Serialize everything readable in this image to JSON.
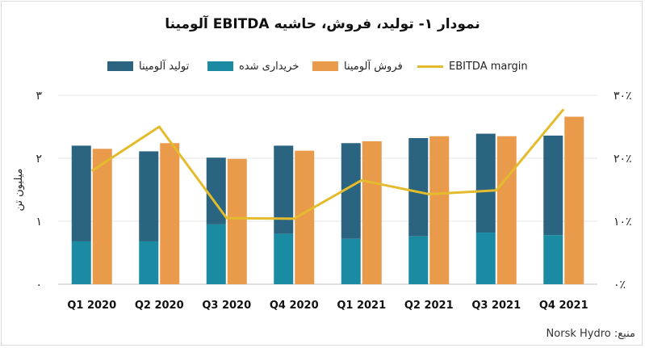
{
  "title": "نمودار ۱- تولید، فروش، حاشیه EBITDA آلومینا",
  "source": "منبع: Norsk Hydro",
  "colors": {
    "production": "#2b6480",
    "purchased": "#1b8ba3",
    "sales": "#ea9a4b",
    "ebitda": "#e4bb2d"
  },
  "legend": {
    "production": "تولید آلومینا",
    "purchased": "خریداری شده",
    "sales": "فروش آلومینا",
    "ebitda": "EBITDA margin"
  },
  "chart_data": {
    "type": "bar",
    "title": "نمودار ۱- تولید، فروش، حاشیه EBITDA آلومینا",
    "categories": [
      "Q1 2020",
      "Q2 2020",
      "Q3 2020",
      "Q4 2020",
      "Q1 2021",
      "Q2 2021",
      "Q3 2021",
      "Q4 2021"
    ],
    "series": [
      {
        "name": "تولید آلومینا",
        "kind": "stacked-bar-total",
        "values": [
          2.2,
          2.11,
          2.01,
          2.2,
          2.24,
          2.32,
          2.39,
          2.36
        ],
        "purchased_portion": [
          0.68,
          0.68,
          0.95,
          0.8,
          0.72,
          0.76,
          0.82,
          0.78
        ]
      },
      {
        "name": "خریداری شده",
        "kind": "stacked-bar-segment",
        "values": [
          0.68,
          0.68,
          0.95,
          0.8,
          0.72,
          0.76,
          0.82,
          0.78
        ]
      },
      {
        "name": "فروش آلومینا",
        "kind": "bar",
        "values": [
          2.15,
          2.24,
          1.99,
          2.12,
          2.27,
          2.35,
          2.35,
          2.66
        ]
      },
      {
        "name": "EBITDA margin",
        "kind": "line",
        "axis": "right",
        "values": [
          18,
          25,
          10.5,
          10.4,
          16.5,
          14.3,
          14.9,
          27.8
        ]
      }
    ],
    "ylabel": "میلیون تن",
    "ylim": [
      0,
      3
    ],
    "yticks": [
      "۰",
      "۱",
      "۲",
      "۳"
    ],
    "y2lim": [
      0,
      30
    ],
    "y2ticks": [
      "۰٪",
      "۱۰٪",
      "۲۰٪",
      "۳۰٪"
    ],
    "grid": true,
    "legend_position": "top"
  }
}
